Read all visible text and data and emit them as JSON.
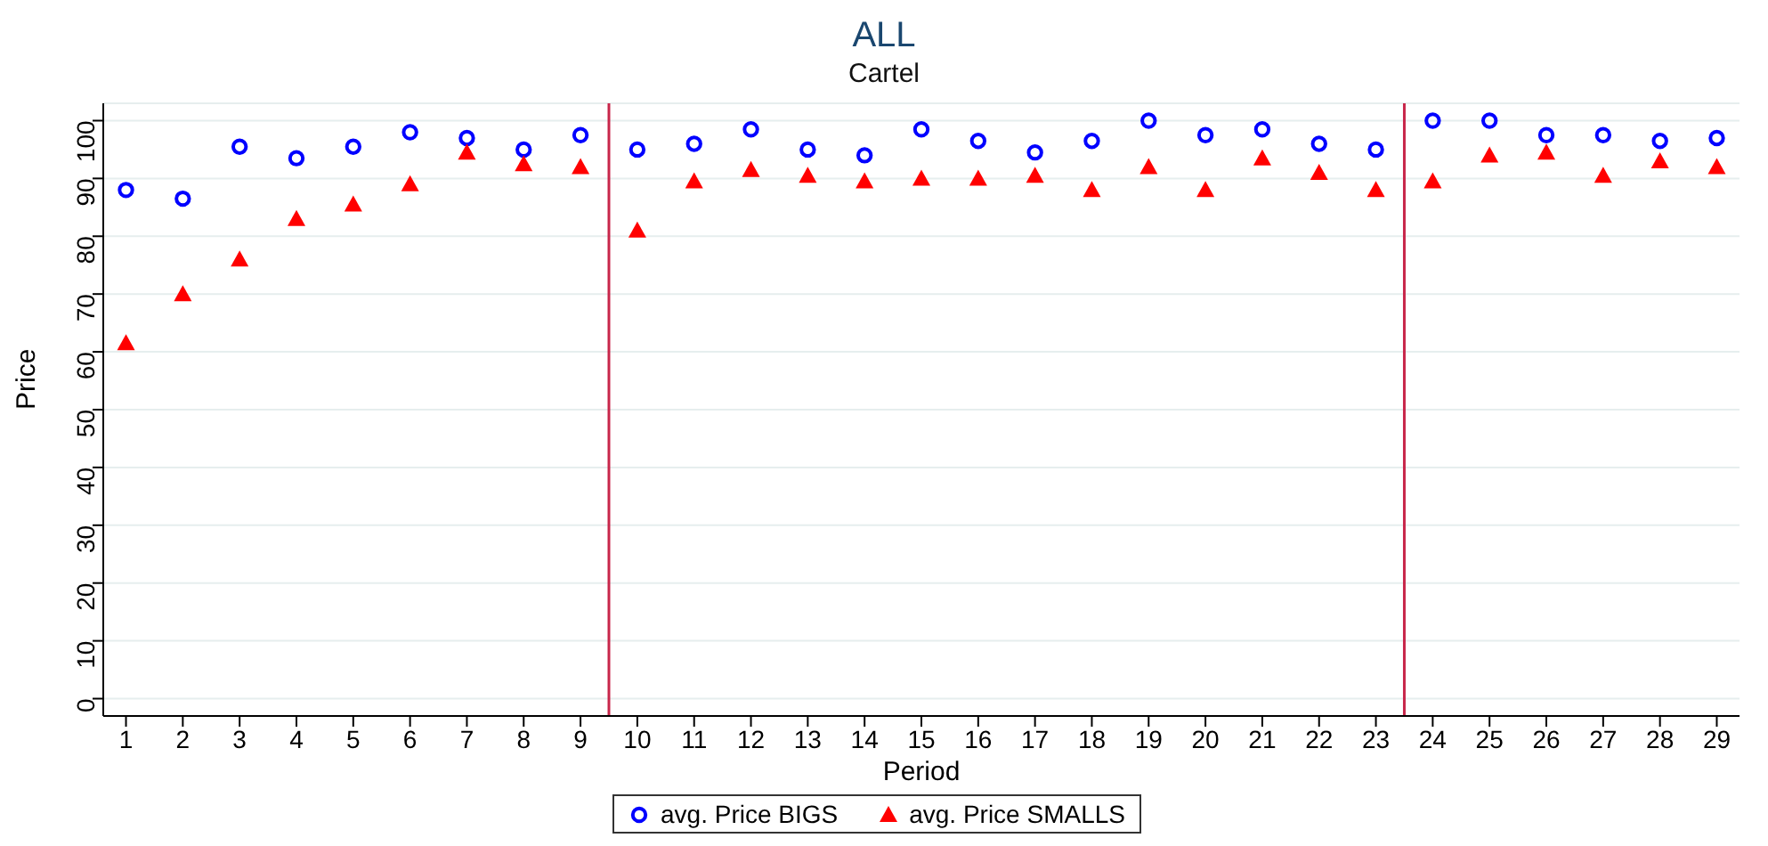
{
  "chart_data": {
    "type": "scatter",
    "title": "ALL",
    "subtitle": "Cartel",
    "xlabel": "Period",
    "ylabel": "Price",
    "x": [
      1,
      2,
      3,
      4,
      5,
      6,
      7,
      8,
      9,
      10,
      11,
      12,
      13,
      14,
      15,
      16,
      17,
      18,
      19,
      20,
      21,
      22,
      23,
      24,
      25,
      26,
      27,
      28,
      29
    ],
    "series": [
      {
        "name": "avg. Price BIGS",
        "color": "#0000ff",
        "marker": "circle",
        "values": [
          88,
          86.5,
          95.5,
          93.5,
          95.5,
          98,
          97,
          95,
          97.5,
          95,
          96,
          98.5,
          95,
          94,
          98.5,
          96.5,
          94.5,
          96.5,
          100,
          97.5,
          98.5,
          96,
          95,
          100,
          100,
          97.5,
          97.5,
          96.5,
          97
        ]
      },
      {
        "name": "avg. Price SMALLS",
        "color": "#ff0000",
        "marker": "triangle",
        "values": [
          61.5,
          70,
          76,
          83,
          85.5,
          89,
          94.5,
          92.5,
          92,
          81,
          89.5,
          91.5,
          90.5,
          89.5,
          90,
          90,
          90.5,
          88,
          92,
          88,
          93.5,
          91,
          88,
          89.5,
          94,
          94.5,
          90.5,
          93,
          92
        ]
      }
    ],
    "xlim": [
      0.6,
      29.4
    ],
    "xticks": [
      1,
      2,
      3,
      4,
      5,
      6,
      7,
      8,
      9,
      10,
      11,
      12,
      13,
      14,
      15,
      16,
      17,
      18,
      19,
      20,
      21,
      22,
      23,
      24,
      25,
      26,
      27,
      28,
      29
    ],
    "ylim": [
      -3,
      103
    ],
    "yticks": [
      0,
      10,
      20,
      30,
      40,
      50,
      60,
      70,
      80,
      90,
      100
    ],
    "ref_lines": [
      {
        "axis": "x",
        "value": 9.5,
        "color": "#c8264a"
      },
      {
        "axis": "x",
        "value": 23.5,
        "color": "#c8264a"
      }
    ],
    "grid": "y",
    "legend": "bottom"
  }
}
